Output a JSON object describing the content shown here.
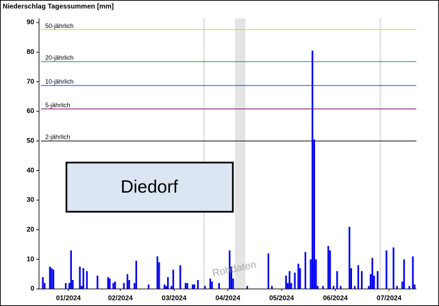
{
  "chart_data": {
    "type": "bar",
    "title": "Niederschlag Tagessummen [mm]",
    "station": "Diedorf",
    "watermark": "Rohdaten",
    "color": "#0000ee",
    "xlim": [
      0,
      213
    ],
    "xticks": [
      {
        "value": 15.5,
        "label": "01/2024"
      },
      {
        "value": 45,
        "label": "02/2024"
      },
      {
        "value": 75.5,
        "label": "03/2024"
      },
      {
        "value": 106,
        "label": "04/2024"
      },
      {
        "value": 136.5,
        "label": "05/2024"
      },
      {
        "value": 167,
        "label": "06/2024"
      },
      {
        "value": 197.5,
        "label": "07/2024"
      }
    ],
    "ylim": [
      0,
      90
    ],
    "yticks": [
      0,
      10,
      20,
      30,
      40,
      50,
      60,
      70,
      80,
      90
    ],
    "thresholds": [
      {
        "label": "2-jährlich",
        "value": 50,
        "color": "#000000"
      },
      {
        "label": "5-jährlich",
        "value": 60.8,
        "color": "#800060"
      },
      {
        "label": "10-jährlich",
        "value": 68.7,
        "color": "#3333dd"
      },
      {
        "label": "20-jährlich",
        "value": 76.8,
        "color": "#119911"
      },
      {
        "label": "50-jährlich",
        "value": 87.6,
        "color": "#f0c040"
      }
    ],
    "gaps": [
      [
        92,
        93
      ],
      [
        110,
        116
      ],
      [
        192,
        193
      ]
    ],
    "x": [
      1,
      2,
      5,
      6,
      7,
      14,
      16,
      17,
      18,
      22,
      23,
      24,
      26,
      32,
      38,
      39,
      41,
      42,
      47,
      49,
      50,
      53,
      54,
      61,
      66,
      67,
      70,
      71,
      72,
      74,
      75,
      79,
      82,
      83,
      86,
      87,
      89,
      93,
      96,
      97,
      101,
      107,
      108,
      109,
      117,
      129,
      131,
      139,
      140,
      141,
      142,
      144,
      146,
      147,
      150,
      153,
      154,
      155,
      156,
      157,
      160,
      163,
      164,
      166,
      168,
      170,
      175,
      176,
      178,
      180,
      182,
      186,
      187,
      188,
      189,
      191,
      196,
      200,
      202,
      205,
      206,
      209,
      211,
      212
    ],
    "values": [
      4,
      2,
      7.5,
      7,
      6.5,
      2,
      2,
      13,
      3,
      7.5,
      1,
      7,
      6,
      4.5,
      4,
      3.5,
      2,
      2.5,
      2,
      5,
      3,
      2,
      9.5,
      1.5,
      11,
      9,
      1.5,
      1,
      4,
      1,
      6.5,
      8,
      2,
      2,
      1.5,
      1.5,
      3,
      1,
      3.5,
      2.5,
      2,
      13,
      7.5,
      3.5,
      1,
      12,
      1,
      4.5,
      2,
      6,
      2,
      5.5,
      8.5,
      7,
      12.5,
      10,
      80.5,
      50.5,
      10,
      1,
      1,
      14.5,
      13,
      1,
      6,
      1,
      21,
      7,
      1,
      8,
      6,
      1,
      5,
      10.5,
      4.5,
      6,
      13,
      14,
      1,
      2.5,
      10,
      1,
      11,
      1.5
    ]
  }
}
